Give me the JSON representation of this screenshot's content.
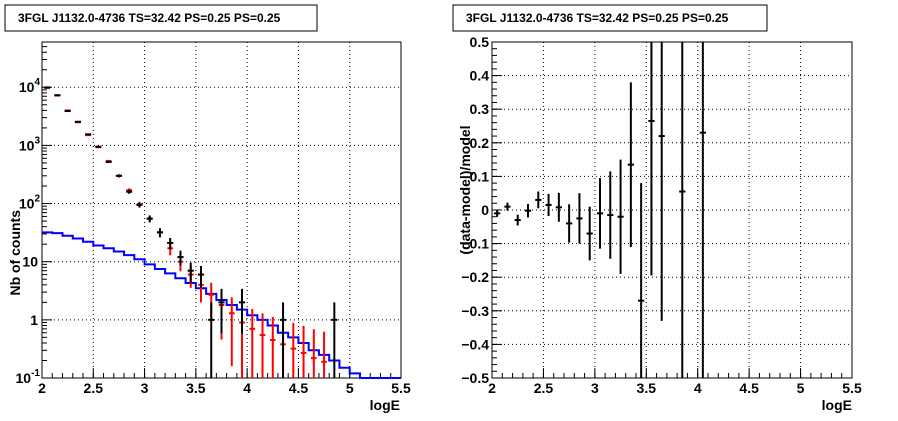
{
  "chart_data": [
    {
      "type": "histogram",
      "title": "3FGL J1132.0-4736 TS=32.42 PS=0.25 PS=0.25",
      "xlabel": "logE",
      "ylabel": "Nb of counts",
      "xlim": [
        2,
        5.5
      ],
      "ylim": [
        0.1,
        60000
      ],
      "yscale": "log",
      "grid": true,
      "x_ticks": [
        "2",
        "2.5",
        "3",
        "3.5",
        "4",
        "4.5",
        "5",
        "5.5"
      ],
      "y_ticks": [
        {
          "value": 0.1,
          "label": "10",
          "sup": "-1"
        },
        {
          "value": 1,
          "label": "1",
          "sup": ""
        },
        {
          "value": 10,
          "label": "10",
          "sup": ""
        },
        {
          "value": 100,
          "label": "10",
          "sup": "2"
        },
        {
          "value": 1000,
          "label": "10",
          "sup": "3"
        },
        {
          "value": 10000,
          "label": "10",
          "sup": "4"
        }
      ],
      "bin_width": 0.1,
      "series": [
        {
          "role": "data",
          "color": "#000000",
          "points": [
            {
              "x": 2.05,
              "y": 9800
            },
            {
              "x": 2.15,
              "y": 7300
            },
            {
              "x": 2.25,
              "y": 3900
            },
            {
              "x": 2.35,
              "y": 2550
            },
            {
              "x": 2.45,
              "y": 1550
            },
            {
              "x": 2.55,
              "y": 950
            },
            {
              "x": 2.65,
              "y": 520
            },
            {
              "x": 2.75,
              "y": 300
            },
            {
              "x": 2.85,
              "y": 160
            },
            {
              "x": 2.95,
              "y": 95
            },
            {
              "x": 3.05,
              "y": 55
            },
            {
              "x": 3.15,
              "y": 32
            },
            {
              "x": 3.25,
              "y": 21
            },
            {
              "x": 3.35,
              "y": 12
            },
            {
              "x": 3.45,
              "y": 7
            },
            {
              "x": 3.55,
              "y": 6
            },
            {
              "x": 3.65,
              "y": 1
            },
            {
              "x": 3.75,
              "y": 2
            },
            {
              "x": 3.95,
              "y": 2
            },
            {
              "x": 4.35,
              "y": 1
            },
            {
              "x": 4.85,
              "y": 1
            }
          ]
        },
        {
          "role": "model",
          "color": "#ff0000",
          "points": [
            {
              "x": 2.05,
              "y": 10000
            },
            {
              "x": 2.15,
              "y": 7200
            },
            {
              "x": 2.25,
              "y": 4000
            },
            {
              "x": 2.35,
              "y": 2500
            },
            {
              "x": 2.45,
              "y": 1500
            },
            {
              "x": 2.55,
              "y": 930
            },
            {
              "x": 2.65,
              "y": 540
            },
            {
              "x": 2.75,
              "y": 300
            },
            {
              "x": 2.85,
              "y": 170
            },
            {
              "x": 2.95,
              "y": 97
            },
            {
              "x": 3.05,
              "y": 55
            },
            {
              "x": 3.15,
              "y": 32
            },
            {
              "x": 3.25,
              "y": 17
            },
            {
              "x": 3.35,
              "y": 10
            },
            {
              "x": 3.45,
              "y": 6
            },
            {
              "x": 3.55,
              "y": 4
            },
            {
              "x": 3.65,
              "y": 2.7
            },
            {
              "x": 3.75,
              "y": 1.8
            },
            {
              "x": 3.85,
              "y": 1.3
            },
            {
              "x": 3.95,
              "y": 0.9
            },
            {
              "x": 4.05,
              "y": 0.7
            },
            {
              "x": 4.15,
              "y": 0.55
            },
            {
              "x": 4.25,
              "y": 0.45
            },
            {
              "x": 4.35,
              "y": 0.38
            },
            {
              "x": 4.45,
              "y": 0.32
            },
            {
              "x": 4.55,
              "y": 0.27
            },
            {
              "x": 4.65,
              "y": 0.22
            },
            {
              "x": 4.75,
              "y": 0.19
            }
          ]
        },
        {
          "role": "background",
          "color": "#0000ff",
          "points": [
            {
              "x": 2.05,
              "y": 32
            },
            {
              "x": 2.15,
              "y": 31
            },
            {
              "x": 2.25,
              "y": 28
            },
            {
              "x": 2.35,
              "y": 25
            },
            {
              "x": 2.45,
              "y": 22
            },
            {
              "x": 2.55,
              "y": 19
            },
            {
              "x": 2.65,
              "y": 17
            },
            {
              "x": 2.75,
              "y": 15
            },
            {
              "x": 2.85,
              "y": 13
            },
            {
              "x": 2.95,
              "y": 11
            },
            {
              "x": 3.05,
              "y": 9
            },
            {
              "x": 3.15,
              "y": 7.5
            },
            {
              "x": 3.25,
              "y": 6.3
            },
            {
              "x": 3.35,
              "y": 5.2
            },
            {
              "x": 3.45,
              "y": 4.3
            },
            {
              "x": 3.55,
              "y": 3.5
            },
            {
              "x": 3.65,
              "y": 2.8
            },
            {
              "x": 3.75,
              "y": 2.2
            },
            {
              "x": 3.85,
              "y": 1.8
            },
            {
              "x": 3.95,
              "y": 1.5
            },
            {
              "x": 4.05,
              "y": 1.2
            },
            {
              "x": 4.15,
              "y": 1.0
            },
            {
              "x": 4.25,
              "y": 0.8
            },
            {
              "x": 4.35,
              "y": 0.6
            },
            {
              "x": 4.45,
              "y": 0.5
            },
            {
              "x": 4.55,
              "y": 0.4
            },
            {
              "x": 4.65,
              "y": 0.3
            },
            {
              "x": 4.75,
              "y": 0.25
            },
            {
              "x": 4.85,
              "y": 0.2
            },
            {
              "x": 4.95,
              "y": 0.15
            },
            {
              "x": 5.05,
              "y": 0.12
            },
            {
              "x": 5.15,
              "y": 0.1
            },
            {
              "x": 5.25,
              "y": 0.1
            },
            {
              "x": 5.35,
              "y": 0.1
            },
            {
              "x": 5.45,
              "y": 0.1
            }
          ]
        }
      ]
    },
    {
      "type": "scatter",
      "title": "3FGL J1132.0-4736 TS=32.42 PS=0.25 PS=0.25",
      "xlabel": "logE",
      "ylabel": "(data-model)/model",
      "xlim": [
        2,
        5.5
      ],
      "ylim": [
        -0.5,
        0.5
      ],
      "grid": true,
      "x_ticks": [
        "2",
        "2.5",
        "3",
        "3.5",
        "4",
        "4.5",
        "5",
        "5.5"
      ],
      "y_ticks": [
        "-0.5",
        "-0.4",
        "-0.3",
        "-0.2",
        "-0.1",
        "0",
        "0.1",
        "0.2",
        "0.3",
        "0.4",
        "0.5"
      ],
      "bin_width": 0.1,
      "series": [
        {
          "color": "#000000",
          "points": [
            {
              "x": 2.05,
              "y": -0.01,
              "err": 0.01
            },
            {
              "x": 2.15,
              "y": 0.01,
              "err": 0.012
            },
            {
              "x": 2.25,
              "y": -0.03,
              "err": 0.016
            },
            {
              "x": 2.35,
              "y": -0.002,
              "err": 0.02
            },
            {
              "x": 2.45,
              "y": 0.03,
              "err": 0.025
            },
            {
              "x": 2.55,
              "y": 0.015,
              "err": 0.033
            },
            {
              "x": 2.65,
              "y": 0.008,
              "err": 0.043
            },
            {
              "x": 2.75,
              "y": -0.04,
              "err": 0.057
            },
            {
              "x": 2.85,
              "y": -0.025,
              "err": 0.075
            },
            {
              "x": 2.95,
              "y": -0.07,
              "err": 0.08
            },
            {
              "x": 3.05,
              "y": -0.01,
              "err": 0.105
            },
            {
              "x": 3.15,
              "y": -0.015,
              "err": 0.13
            },
            {
              "x": 3.25,
              "y": -0.02,
              "err": 0.17
            },
            {
              "x": 3.35,
              "y": 0.135,
              "err": 0.245
            },
            {
              "x": 3.45,
              "y": -0.27,
              "err": 0.35
            },
            {
              "x": 3.55,
              "y": 0.265,
              "err": 0.46
            },
            {
              "x": 3.65,
              "y": 0.22,
              "err": 0.55
            },
            {
              "x": 3.85,
              "y": 0.055,
              "err": 0.8
            },
            {
              "x": 4.05,
              "y": 0.23,
              "err": 1.0
            }
          ]
        }
      ]
    }
  ]
}
